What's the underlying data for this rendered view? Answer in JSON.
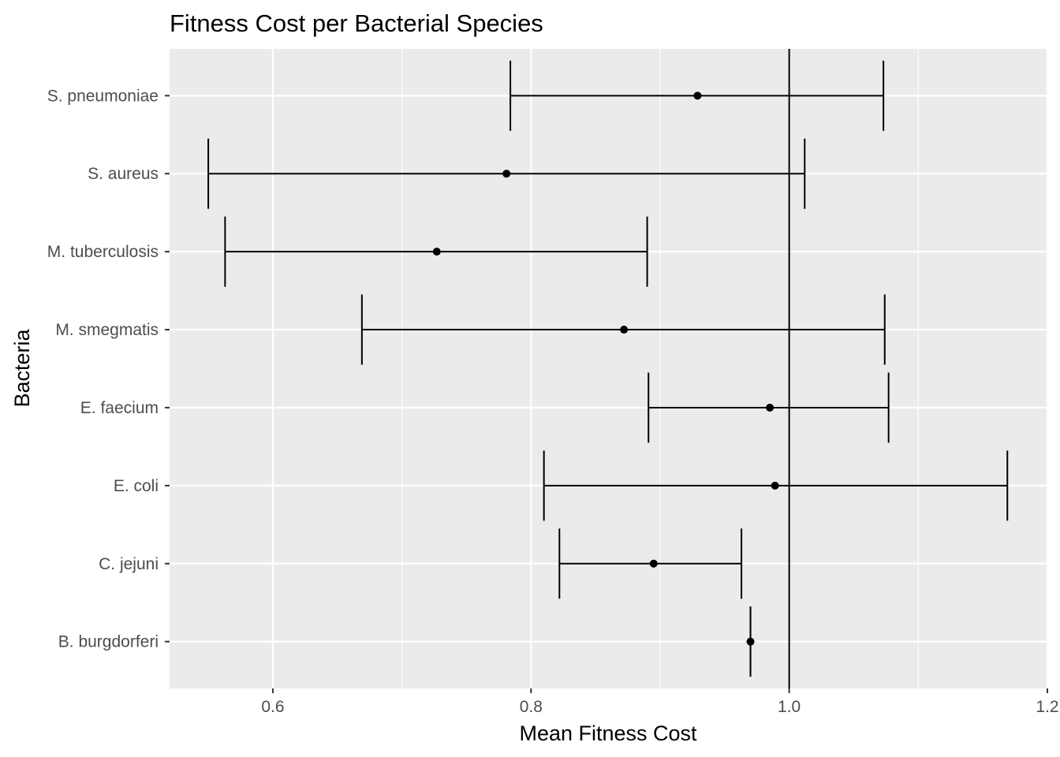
{
  "chart_data": {
    "type": "errorbar",
    "title": "Fitness Cost per Bacterial Species",
    "xlabel": "Mean Fitness Cost",
    "ylabel": "Bacteria",
    "xlim": [
      0.52,
      1.2
    ],
    "xticks": [
      0.6,
      0.8,
      1.0,
      1.2
    ],
    "xtick_labels": [
      "0.6",
      "0.8",
      "1.0",
      "1.2"
    ],
    "reference_line_x": 1.0,
    "grid": true,
    "categories": [
      "S. pneumoniae",
      "S. aureus",
      "M. tuberculosis",
      "M. smegmatis",
      "E. faecium",
      "E. coli",
      "C. jejuni",
      "B. burgdorferi"
    ],
    "mean": [
      0.929,
      0.781,
      0.727,
      0.872,
      0.985,
      0.989,
      0.895,
      0.97
    ],
    "lower": [
      0.784,
      0.55,
      0.563,
      0.669,
      0.891,
      0.81,
      0.822,
      0.97
    ],
    "upper": [
      1.073,
      1.012,
      0.89,
      1.074,
      1.077,
      1.169,
      0.963,
      0.97
    ],
    "colors": {
      "panel": "#ebebeb",
      "grid": "#ffffff",
      "mark": "#000000",
      "tick_text": "#4d4d4d"
    }
  }
}
